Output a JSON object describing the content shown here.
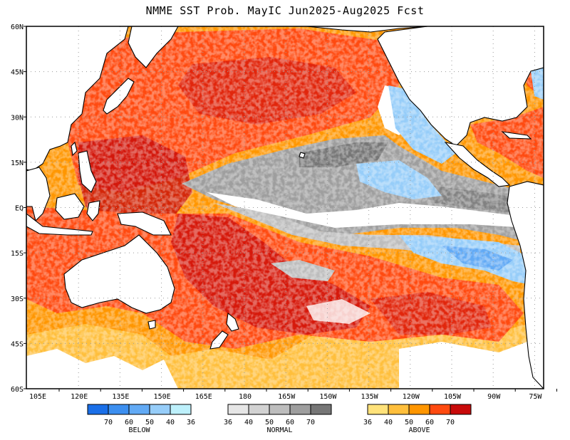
{
  "title": "NMME SST Prob. MayIC  Jun2025-Aug2025 Fcst",
  "lat_labels": [
    "60N",
    "45N",
    "30N",
    "15N",
    "EQ",
    "15S",
    "30S",
    "45S",
    "60S"
  ],
  "lon_labels": [
    "105E",
    "120E",
    "135E",
    "150E",
    "165E",
    "180",
    "165W",
    "150W",
    "135W",
    "120W",
    "105W",
    "90W",
    "75W"
  ],
  "colors": {
    "below": [
      "#1a6fe8",
      "#3c8ff0",
      "#62aaf5",
      "#96cdf9",
      "#bdf0fb"
    ],
    "normal": [
      "#e6e6e6",
      "#d2d2d2",
      "#bdbdbd",
      "#9e9e9e",
      "#767676"
    ],
    "above": [
      "#ffe27a",
      "#ffbf3c",
      "#ff9600",
      "#ff4a10",
      "#c80a0a"
    ]
  },
  "legend": {
    "below": {
      "ticks": [
        "70",
        "60",
        "50",
        "40",
        "36"
      ],
      "label": "BELOW"
    },
    "normal": {
      "ticks": [
        "36",
        "40",
        "50",
        "60",
        "70"
      ],
      "label": "NORMAL"
    },
    "above": {
      "ticks": [
        "36",
        "40",
        "50",
        "60",
        "70"
      ],
      "label": "ABOVE"
    }
  }
}
